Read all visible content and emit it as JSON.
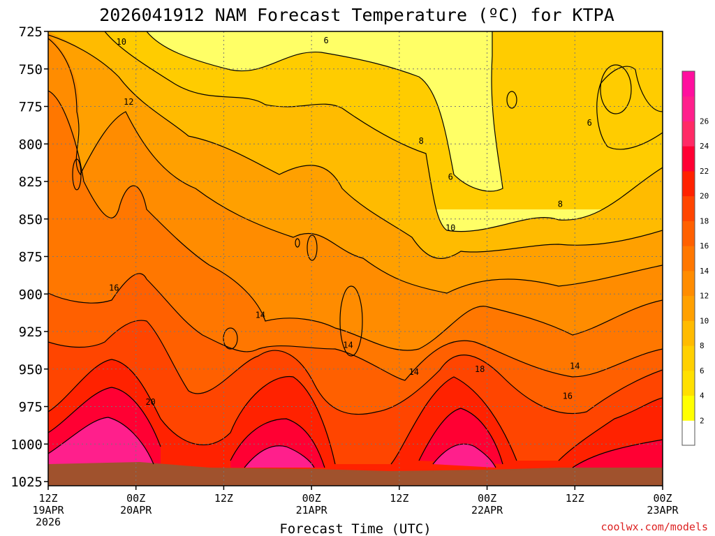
{
  "chart_data": {
    "type": "heatmap",
    "title": "2026041912 NAM Forecast Temperature (ºC) for KTPA",
    "xlabel": "Forecast Time (UTC)",
    "ylabel": "",
    "credit": "coolwx.com/models",
    "x_range_hours": [
      0,
      84
    ],
    "y_range_hpa": [
      1025,
      725
    ],
    "y_ticks": [
      "725",
      "750",
      "775",
      "800",
      "825",
      "850",
      "875",
      "900",
      "925",
      "950",
      "975",
      "1000",
      "1025"
    ],
    "x_ticks": [
      {
        "hour": 0,
        "line1": "12Z",
        "line2": "19APR",
        "line3": "2026"
      },
      {
        "hour": 12,
        "line1": "00Z",
        "line2": "20APR",
        "line3": ""
      },
      {
        "hour": 24,
        "line1": "12Z",
        "line2": "",
        "line3": ""
      },
      {
        "hour": 36,
        "line1": "00Z",
        "line2": "21APR",
        "line3": ""
      },
      {
        "hour": 48,
        "line1": "12Z",
        "line2": "",
        "line3": ""
      },
      {
        "hour": 60,
        "line1": "00Z",
        "line2": "22APR",
        "line3": ""
      },
      {
        "hour": 72,
        "line1": "12Z",
        "line2": "",
        "line3": ""
      },
      {
        "hour": 84,
        "line1": "00Z",
        "line2": "23APR",
        "line3": ""
      }
    ],
    "contour_levels": [
      6,
      8,
      10,
      12,
      14,
      16,
      18,
      20
    ],
    "contour_labels": [
      {
        "text": "10",
        "hour": 10,
        "p": 732
      },
      {
        "text": "6",
        "hour": 38,
        "p": 731
      },
      {
        "text": "12",
        "hour": 11,
        "p": 772
      },
      {
        "text": "8",
        "hour": 51,
        "p": 798
      },
      {
        "text": "6",
        "hour": 55,
        "p": 822
      },
      {
        "text": "6",
        "hour": 74,
        "p": 786
      },
      {
        "text": "8",
        "hour": 70,
        "p": 840
      },
      {
        "text": "10",
        "hour": 55,
        "p": 856
      },
      {
        "text": "16",
        "hour": 9,
        "p": 896
      },
      {
        "text": "14",
        "hour": 29,
        "p": 914
      },
      {
        "text": "14",
        "hour": 41,
        "p": 934
      },
      {
        "text": "14",
        "hour": 50,
        "p": 952
      },
      {
        "text": "18",
        "hour": 59,
        "p": 950
      },
      {
        "text": "14",
        "hour": 72,
        "p": 948
      },
      {
        "text": "16",
        "hour": 71,
        "p": 968
      },
      {
        "text": "20",
        "hour": 14,
        "p": 972
      }
    ],
    "colorbar": {
      "ticks": [
        "2",
        "4",
        "6",
        "8",
        "10",
        "12",
        "14",
        "16",
        "18",
        "20",
        "22",
        "24",
        "26"
      ],
      "colors": [
        "#ffffff",
        "#ffff00",
        "#ffe000",
        "#ffd000",
        "#ffbb00",
        "#ffa000",
        "#ff8c00",
        "#ff7700",
        "#ff6000",
        "#ff4500",
        "#ff2200",
        "#ff0033",
        "#ff2a66",
        "#ff1f8c",
        "#ff0f9e"
      ]
    },
    "colors": {
      "ground": "#a0522d",
      "background": "#ffffff",
      "grid": "#777777"
    }
  }
}
